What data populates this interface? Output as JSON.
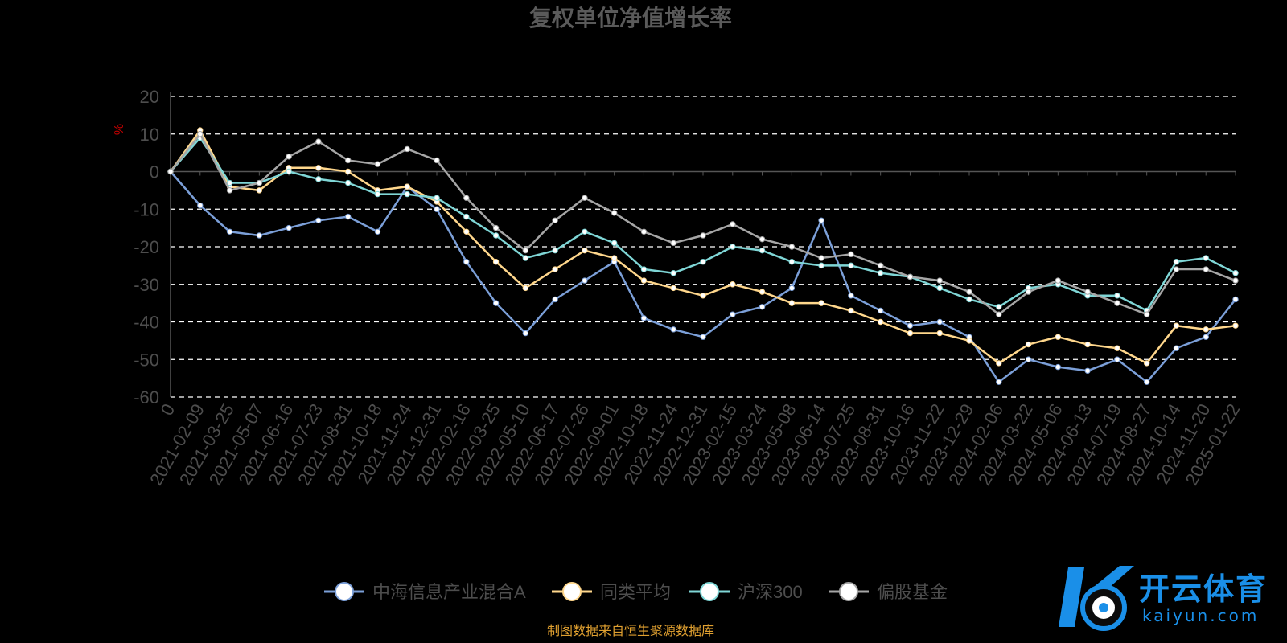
{
  "chart_data": {
    "type": "line",
    "title": "复权单位净值增长率",
    "ylabel": "%",
    "ylim": [
      -60,
      20
    ],
    "yticks": [
      20,
      10,
      0,
      -10,
      -20,
      -30,
      -40,
      -50,
      -60
    ],
    "grid": "dashed horizontal",
    "legend_position": "bottom-center",
    "source_note": "制图数据来自恒生聚源数据库",
    "categories": [
      "0",
      "2021-02-09",
      "2021-03-25",
      "2021-05-07",
      "2021-06-16",
      "2021-07-23",
      "2021-08-31",
      "2021-10-18",
      "2021-11-24",
      "2021-12-31",
      "2022-02-16",
      "2022-03-25",
      "2022-05-10",
      "2022-06-17",
      "2022-07-26",
      "2022-09-01",
      "2022-10-18",
      "2022-11-24",
      "2022-12-31",
      "2023-02-15",
      "2023-03-24",
      "2023-05-08",
      "2023-06-14",
      "2023-07-25",
      "2023-08-31",
      "2023-10-16",
      "2023-11-22",
      "2023-12-29",
      "2024-02-06",
      "2024-03-22",
      "2024-05-06",
      "2024-06-13",
      "2024-07-19",
      "2024-08-27",
      "2024-10-14",
      "2024-11-20",
      "2025-01-22"
    ],
    "series": [
      {
        "name": "中海信息产业混合A",
        "color": "#7b9fd8",
        "values": [
          0,
          -9,
          -16,
          -17,
          -15,
          -13,
          -12,
          -16,
          -4,
          -10,
          -24,
          -35,
          -43,
          -34,
          -29,
          -24,
          -39,
          -42,
          -44,
          -38,
          -36,
          -31,
          -13,
          -33,
          -37,
          -41,
          -40,
          -44,
          -56,
          -50,
          -52,
          -53,
          -50,
          -56,
          -47,
          -44,
          -34
        ]
      },
      {
        "name": "同类平均",
        "color": "#ffd78c",
        "values": [
          0,
          11,
          -4,
          -5,
          1,
          1,
          0,
          -5,
          -4,
          -8,
          -16,
          -24,
          -31,
          -26,
          -21,
          -23,
          -29,
          -31,
          -33,
          -30,
          -32,
          -35,
          -35,
          -37,
          -40,
          -43,
          -43,
          -45,
          -51,
          -46,
          -44,
          -46,
          -47,
          -51,
          -41,
          -42,
          -41
        ]
      },
      {
        "name": "沪深300",
        "color": "#7fd6d6",
        "values": [
          0,
          9,
          -3,
          -3,
          0,
          -2,
          -3,
          -6,
          -6,
          -7,
          -12,
          -17,
          -23,
          -21,
          -16,
          -19,
          -26,
          -27,
          -24,
          -20,
          -21,
          -24,
          -25,
          -25,
          -27,
          -28,
          -31,
          -34,
          -36,
          -31,
          -30,
          -33,
          -33,
          -37,
          -24,
          -23,
          -27
        ]
      },
      {
        "name": "偏股基金",
        "color": "#a6a6a6",
        "values": [
          0,
          10,
          -5,
          -3,
          4,
          8,
          3,
          2,
          6,
          3,
          -7,
          -15,
          -21,
          -13,
          -7,
          -11,
          -16,
          -19,
          -17,
          -14,
          -18,
          -20,
          -23,
          -22,
          -25,
          -28,
          -29,
          -32,
          -38,
          -32,
          -29,
          -32,
          -35,
          -38,
          -26,
          -26,
          -29
        ]
      }
    ]
  },
  "logo": {
    "main": "开云体育",
    "sub": "kaiyun.com"
  }
}
